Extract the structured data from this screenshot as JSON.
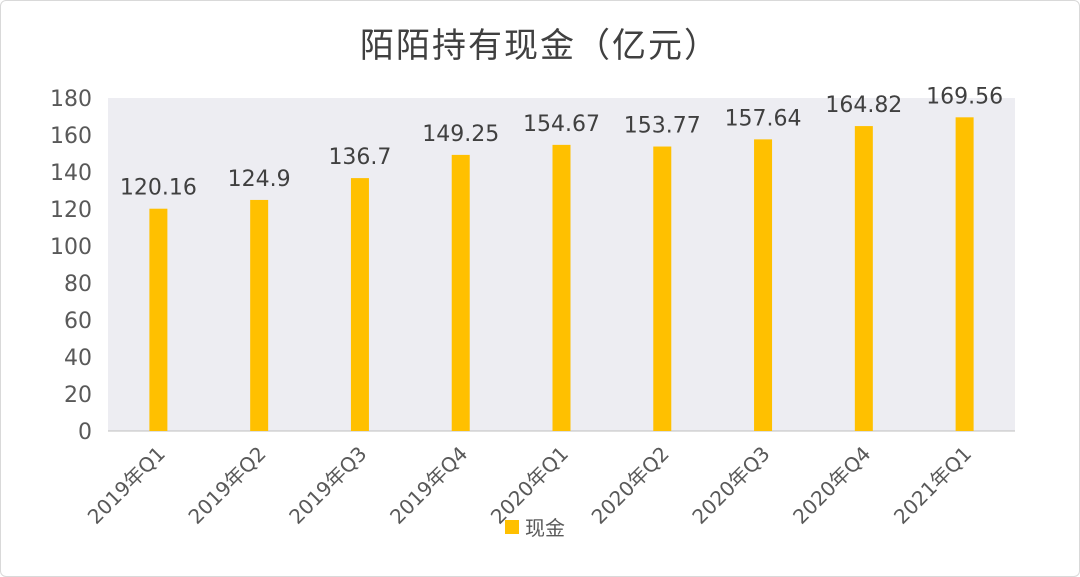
{
  "chart_data": {
    "type": "bar",
    "title": "陌陌持有现金（亿元）",
    "categories": [
      "2019年Q1",
      "2019年Q2",
      "2019年Q3",
      "2019年Q4",
      "2020年Q1",
      "2020年Q2",
      "2020年Q3",
      "2020年Q4",
      "2021年Q1"
    ],
    "series": [
      {
        "name": "现金",
        "values": [
          120.16,
          124.9,
          136.7,
          149.25,
          154.67,
          153.77,
          157.64,
          164.82,
          169.56
        ],
        "color": "#FFC000"
      }
    ],
    "value_labels": [
      "120.16",
      "124.9",
      "136.7",
      "149.25",
      "154.67",
      "153.77",
      "157.64",
      "164.82",
      "169.56"
    ],
    "ylim": [
      0,
      180
    ],
    "yticks": [
      0,
      20,
      40,
      60,
      80,
      100,
      120,
      140,
      160,
      180
    ],
    "plot_background": "#EDEDF2",
    "grid": false,
    "legend_position": "bottom"
  }
}
